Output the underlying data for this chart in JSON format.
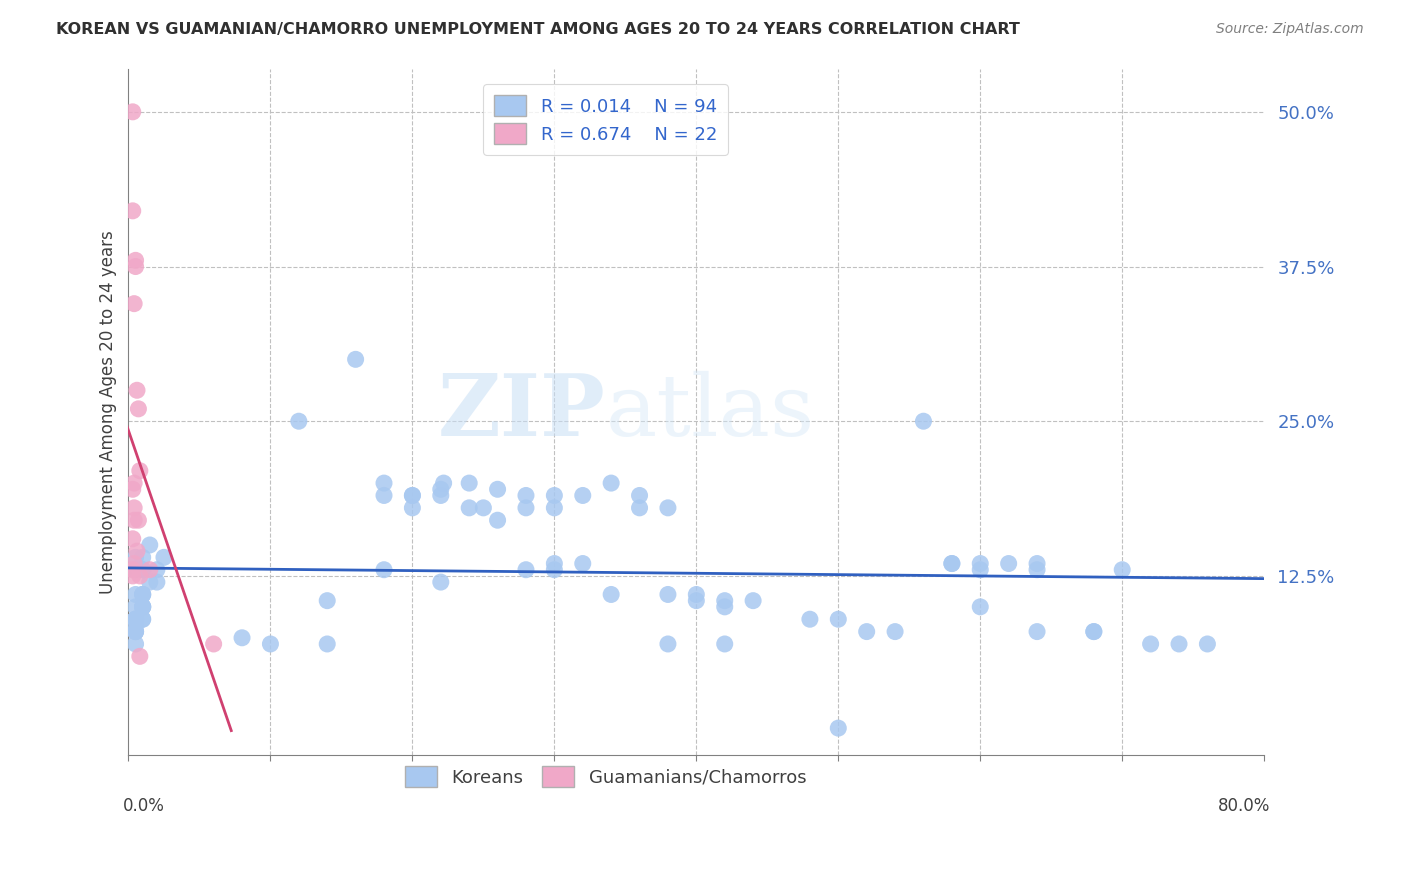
{
  "title": "KOREAN VS GUAMANIAN/CHAMORRO UNEMPLOYMENT AMONG AGES 20 TO 24 YEARS CORRELATION CHART",
  "source": "Source: ZipAtlas.com",
  "ylabel": "Unemployment Among Ages 20 to 24 years",
  "legend_bottom_label1": "Koreans",
  "legend_bottom_label2": "Guamanians/Chamorros",
  "color_korean": "#a8c8f0",
  "color_guam": "#f0a8c8",
  "line_color_korean": "#3060c0",
  "line_color_guam": "#d04070",
  "watermark_zip": "ZIP",
  "watermark_atlas": "atlas",
  "xlim": [
    0.0,
    0.8
  ],
  "ylim": [
    -0.02,
    0.535
  ],
  "korean_R": 0.014,
  "korean_N": 94,
  "guam_R": 0.674,
  "guam_N": 22,
  "korean_x": [
    0.02,
    0.01,
    0.005,
    0.005,
    0.01,
    0.01,
    0.015,
    0.02,
    0.025,
    0.01,
    0.005,
    0.005,
    0.01,
    0.005,
    0.005,
    0.01,
    0.005,
    0.005,
    0.005,
    0.01,
    0.01,
    0.015,
    0.01,
    0.01,
    0.01,
    0.005,
    0.005,
    0.005,
    0.01,
    0.005,
    0.16,
    0.18,
    0.24,
    0.18,
    0.2,
    0.22,
    0.22,
    0.222,
    0.2,
    0.24,
    0.2,
    0.25,
    0.26,
    0.28,
    0.28,
    0.3,
    0.3,
    0.32,
    0.3,
    0.28,
    0.32,
    0.34,
    0.36,
    0.36,
    0.38,
    0.38,
    0.4,
    0.4,
    0.42,
    0.42,
    0.44,
    0.48,
    0.5,
    0.52,
    0.54,
    0.56,
    0.58,
    0.6,
    0.62,
    0.64,
    0.6,
    0.58,
    0.64,
    0.64,
    0.68,
    0.68,
    0.7,
    0.72,
    0.74,
    0.76,
    0.12,
    0.14,
    0.08,
    0.1,
    0.14,
    0.18,
    0.22,
    0.26,
    0.3,
    0.34,
    0.38,
    0.42,
    0.5,
    0.6
  ],
  "korean_y": [
    0.13,
    0.13,
    0.13,
    0.14,
    0.11,
    0.1,
    0.12,
    0.12,
    0.14,
    0.14,
    0.11,
    0.09,
    0.1,
    0.09,
    0.08,
    0.1,
    0.1,
    0.09,
    0.08,
    0.11,
    0.1,
    0.15,
    0.13,
    0.11,
    0.09,
    0.09,
    0.085,
    0.08,
    0.09,
    0.07,
    0.3,
    0.2,
    0.18,
    0.19,
    0.19,
    0.195,
    0.19,
    0.2,
    0.18,
    0.2,
    0.19,
    0.18,
    0.195,
    0.19,
    0.18,
    0.19,
    0.18,
    0.19,
    0.135,
    0.13,
    0.135,
    0.2,
    0.18,
    0.19,
    0.18,
    0.11,
    0.11,
    0.105,
    0.105,
    0.1,
    0.105,
    0.09,
    0.09,
    0.08,
    0.08,
    0.25,
    0.135,
    0.13,
    0.135,
    0.135,
    0.1,
    0.135,
    0.13,
    0.08,
    0.08,
    0.08,
    0.13,
    0.07,
    0.07,
    0.07,
    0.25,
    0.105,
    0.075,
    0.07,
    0.07,
    0.13,
    0.12,
    0.17,
    0.13,
    0.11,
    0.07,
    0.07,
    0.002,
    0.135
  ],
  "guam_x": [
    0.003,
    0.003,
    0.005,
    0.005,
    0.004,
    0.006,
    0.007,
    0.008,
    0.004,
    0.003,
    0.004,
    0.007,
    0.004,
    0.003,
    0.006,
    0.004,
    0.003,
    0.003,
    0.015,
    0.008,
    0.008,
    0.06
  ],
  "guam_y": [
    0.5,
    0.42,
    0.38,
    0.375,
    0.345,
    0.275,
    0.26,
    0.21,
    0.2,
    0.195,
    0.18,
    0.17,
    0.17,
    0.155,
    0.145,
    0.135,
    0.13,
    0.125,
    0.13,
    0.125,
    0.06,
    0.07
  ]
}
